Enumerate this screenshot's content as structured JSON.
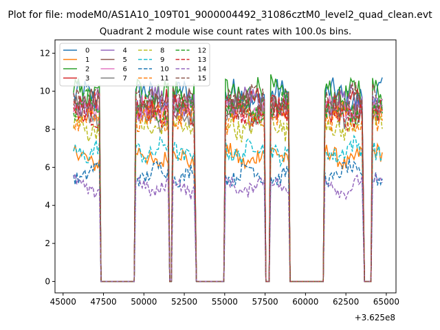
{
  "figure": {
    "suptitle": "Plot for file: modeM0/AS1A10_109T01_9000004492_31086cztM0_level2_quad_clean.evt"
  },
  "chart_data": {
    "type": "line",
    "title": "Quadrant 2 module wise count rates with 100.0s bins.",
    "xlabel": "",
    "ylabel": "",
    "x_offset_label": "+3.625e8",
    "xlim": [
      44500,
      65600
    ],
    "ylim": [
      -0.6,
      12.7
    ],
    "xticks": [
      45000,
      47500,
      50000,
      52500,
      55000,
      57500,
      60000,
      62500,
      65000
    ],
    "xtick_labels": [
      "45000",
      "47500",
      "50000",
      "52500",
      "55000",
      "57500",
      "60000",
      "62500",
      "65000"
    ],
    "yticks": [
      0,
      2,
      4,
      6,
      8,
      10,
      12
    ],
    "ytick_labels": [
      "0",
      "2",
      "4",
      "6",
      "8",
      "10",
      "12"
    ],
    "grid": false,
    "legend": {
      "placement": "top-left",
      "columns": 4
    },
    "on_intervals": [
      [
        45650,
        47250
      ],
      [
        49500,
        51500
      ],
      [
        51800,
        53150
      ],
      [
        55050,
        57450
      ],
      [
        57850,
        58950
      ],
      [
        61200,
        63550
      ],
      [
        64150,
        64800
      ]
    ],
    "off_level": 0,
    "series": [
      {
        "name": "0",
        "color": "#1f77b4",
        "dash": "solid",
        "mean_rate": 9.7
      },
      {
        "name": "1",
        "color": "#ff7f0e",
        "dash": "solid",
        "mean_rate": 6.5
      },
      {
        "name": "2",
        "color": "#2ca02c",
        "dash": "solid",
        "mean_rate": 9.9
      },
      {
        "name": "3",
        "color": "#d62728",
        "dash": "solid",
        "mean_rate": 9.3
      },
      {
        "name": "4",
        "color": "#9467bd",
        "dash": "solid",
        "mean_rate": 9.4
      },
      {
        "name": "5",
        "color": "#8c564b",
        "dash": "solid",
        "mean_rate": 9.2
      },
      {
        "name": "6",
        "color": "#e377c2",
        "dash": "solid",
        "mean_rate": 9.0
      },
      {
        "name": "7",
        "color": "#7f7f7f",
        "dash": "solid",
        "mean_rate": 8.8
      },
      {
        "name": "8",
        "color": "#bcbd22",
        "dash": "dashed",
        "mean_rate": 8.2
      },
      {
        "name": "9",
        "color": "#17becf",
        "dash": "dashed",
        "mean_rate": 6.9
      },
      {
        "name": "10",
        "color": "#1f77b4",
        "dash": "dashed",
        "mean_rate": 5.7
      },
      {
        "name": "11",
        "color": "#ff7f0e",
        "dash": "dashed",
        "mean_rate": 8.6
      },
      {
        "name": "12",
        "color": "#2ca02c",
        "dash": "dashed",
        "mean_rate": 9.1
      },
      {
        "name": "13",
        "color": "#d62728",
        "dash": "dashed",
        "mean_rate": 8.9
      },
      {
        "name": "14",
        "color": "#9467bd",
        "dash": "dashed",
        "mean_rate": 5.0
      },
      {
        "name": "15",
        "color": "#8c564b",
        "dash": "dashed",
        "mean_rate": 9.5
      }
    ]
  }
}
